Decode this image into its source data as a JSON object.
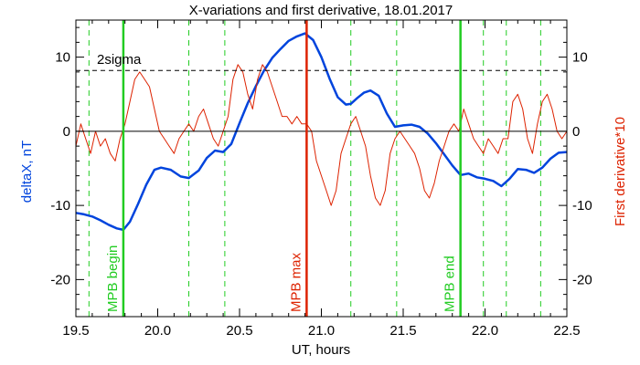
{
  "chart_data": {
    "type": "line",
    "title": "X-variations and first derivative, 18.01.2017",
    "xlabel": "UT, hours",
    "ylabel_left": "deltaX, nT",
    "ylabel_right": "First derivative*10",
    "xlim": [
      19.5,
      22.5
    ],
    "ylim": [
      -25,
      15
    ],
    "x_ticks": [
      "19.5",
      "20.0",
      "20.5",
      "21.0",
      "21.5",
      "22.0",
      "22.5"
    ],
    "y_ticks_left": [
      "-20",
      "-10",
      "0",
      "10"
    ],
    "y_ticks_right": [
      "-20",
      "-10",
      "0",
      "10"
    ],
    "threshold": {
      "label": "2sigma",
      "value": 8.2,
      "style": "dashed",
      "color": "#000000"
    },
    "zero_line": 0,
    "colors": {
      "deltaX": "#0044dd",
      "derivative": "#dd2200",
      "markers": "#22cc22",
      "max": "#dd2200",
      "axes": "#000000"
    },
    "markers": [
      {
        "label": "MPB begin",
        "x": 19.79,
        "color": "#22cc22"
      },
      {
        "label": "MPB max",
        "x": 20.91,
        "color": "#dd2200"
      },
      {
        "label": "MPB end",
        "x": 21.85,
        "color": "#22cc22"
      }
    ],
    "dashed_verticals": [
      19.58,
      20.19,
      20.41,
      21.18,
      21.46,
      21.99,
      22.13,
      22.34
    ],
    "series": [
      {
        "name": "deltaX, nT",
        "axis": "left",
        "color": "#0044dd",
        "x": [
          19.5,
          19.55,
          19.6,
          19.65,
          19.7,
          19.75,
          19.79,
          19.83,
          19.88,
          19.93,
          19.98,
          20.02,
          20.08,
          20.14,
          20.19,
          20.25,
          20.3,
          20.35,
          20.4,
          20.45,
          20.5,
          20.55,
          20.6,
          20.65,
          20.7,
          20.75,
          20.8,
          20.85,
          20.9,
          20.95,
          21.0,
          21.05,
          21.1,
          21.15,
          21.18,
          21.22,
          21.26,
          21.3,
          21.35,
          21.4,
          21.45,
          21.5,
          21.55,
          21.6,
          21.65,
          21.7,
          21.75,
          21.8,
          21.85,
          21.9,
          21.95,
          22.0,
          22.05,
          22.1,
          22.15,
          22.2,
          22.25,
          22.3,
          22.35,
          22.4,
          22.45,
          22.5
        ],
        "y": [
          -11,
          -11.2,
          -11.5,
          -12,
          -12.6,
          -13.1,
          -13.3,
          -12.2,
          -9.8,
          -7.2,
          -5.2,
          -4.9,
          -5.2,
          -6.1,
          -6.3,
          -5.3,
          -3.6,
          -2.6,
          -2.8,
          -1.7,
          1.1,
          3.8,
          6.1,
          8.2,
          9.9,
          11.1,
          12.2,
          12.8,
          13.2,
          12.3,
          10,
          7.1,
          4.6,
          3.6,
          3.7,
          4.5,
          5.2,
          5.5,
          4.8,
          2.4,
          0.6,
          0.8,
          0.9,
          0.6,
          -0.3,
          -1.6,
          -3.1,
          -4.6,
          -5.9,
          -5.7,
          -6.2,
          -6.4,
          -6.7,
          -7.4,
          -6.4,
          -5.1,
          -5.2,
          -5.6,
          -4.9,
          -3.7,
          -2.9,
          -2.8
        ]
      },
      {
        "name": "First derivative*10",
        "axis": "right",
        "color": "#dd2200",
        "x": [
          19.5,
          19.53,
          19.56,
          19.59,
          19.62,
          19.65,
          19.68,
          19.71,
          19.74,
          19.77,
          19.8,
          19.83,
          19.86,
          19.89,
          19.92,
          19.95,
          19.98,
          20.01,
          20.04,
          20.07,
          20.1,
          20.13,
          20.16,
          20.19,
          20.22,
          20.25,
          20.28,
          20.31,
          20.34,
          20.37,
          20.4,
          20.43,
          20.46,
          20.49,
          20.52,
          20.55,
          20.58,
          20.61,
          20.64,
          20.67,
          20.7,
          20.73,
          20.76,
          20.79,
          20.82,
          20.85,
          20.88,
          20.91,
          20.94,
          20.97,
          21.0,
          21.03,
          21.06,
          21.09,
          21.12,
          21.15,
          21.18,
          21.21,
          21.24,
          21.27,
          21.3,
          21.33,
          21.36,
          21.39,
          21.42,
          21.45,
          21.48,
          21.51,
          21.54,
          21.57,
          21.6,
          21.63,
          21.66,
          21.69,
          21.72,
          21.75,
          21.78,
          21.81,
          21.84,
          21.87,
          21.9,
          21.93,
          21.96,
          21.99,
          22.02,
          22.05,
          22.08,
          22.11,
          22.14,
          22.17,
          22.2,
          22.23,
          22.26,
          22.29,
          22.32,
          22.35,
          22.38,
          22.41,
          22.44,
          22.47,
          22.5
        ],
        "y": [
          -2,
          1,
          -1,
          -3,
          0,
          -2,
          -1,
          -3,
          -4,
          -1,
          1,
          4,
          7,
          8,
          7,
          6,
          3,
          0,
          -1,
          -2,
          -3,
          -1,
          0,
          1,
          0,
          2,
          3,
          1,
          -1,
          -2,
          0,
          2,
          7,
          9,
          8,
          5,
          3,
          7,
          9,
          8,
          6,
          4,
          2,
          2,
          1,
          2,
          1,
          1,
          0,
          -4,
          -6,
          -8,
          -10,
          -8,
          -3,
          -1,
          1,
          2,
          0,
          -2,
          -6,
          -9,
          -10,
          -8,
          -3,
          -1,
          0,
          -1,
          -2,
          -3,
          -5,
          -8,
          -9,
          -7,
          -4,
          -2,
          0,
          1,
          0,
          3,
          1,
          -1,
          -2,
          -3,
          -1,
          -2,
          -3,
          -1,
          -1,
          4,
          5,
          3,
          -1,
          -3,
          1,
          4,
          5,
          3,
          0,
          -1,
          0
        ]
      }
    ]
  }
}
